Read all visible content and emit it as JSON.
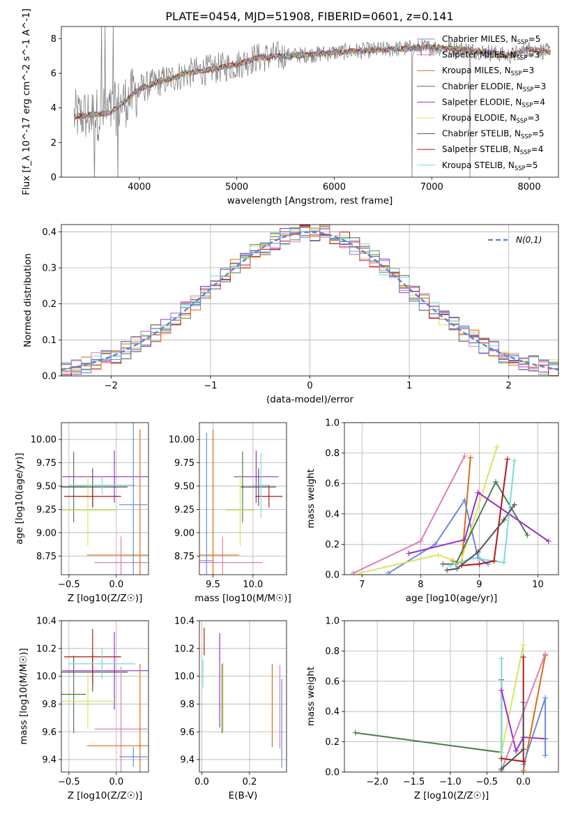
{
  "title": "PLATE=0454, MJD=51908, FIBERID=0601, z=0.141",
  "colors": [
    "#4d7a4d",
    "#9b30c8",
    "#d9e55c",
    "#555555",
    "#b01818",
    "#7fd8d8",
    "#e07cb8",
    "#d96b13",
    "#6a8bd8"
  ],
  "chart_data": [
    {
      "id": "spectrum",
      "type": "line",
      "xlabel": "wavelength [Angstrom, rest frame]",
      "ylabel": "Flux [f_λ 10^-17 erg cm^-2 s^-1 A^-1]",
      "xlim": [
        3200,
        8300
      ],
      "ylim": [
        0,
        8.7
      ],
      "xticks": [
        4000,
        5000,
        6000,
        7000,
        8000
      ],
      "yticks": [
        0,
        2,
        4,
        6,
        8
      ],
      "legend": [
        {
          "label": "Chabrier MILES, N_SSP=5",
          "color": "#6a8bd8"
        },
        {
          "label": "Salpeter MILES, N_SSP=3",
          "color": "#e07cb8"
        },
        {
          "label": "Kroupa MILES, N_SSP=3",
          "color": "#d96b13"
        },
        {
          "label": "Chabrier ELODIE, N_SSP=3",
          "color": "#4d7a4d"
        },
        {
          "label": "Salpeter ELODIE, N_SSP=4",
          "color": "#9b30c8"
        },
        {
          "label": "Kroupa ELODIE, N_SSP=3",
          "color": "#d9e55c"
        },
        {
          "label": "Chabrier STELIB, N_SSP=5",
          "color": "#555555"
        },
        {
          "label": "Salpeter STELIB, N_SSP=4",
          "color": "#b01818"
        },
        {
          "label": "Kroupa STELIB, N_SSP=5",
          "color": "#7fd8d8"
        }
      ],
      "data_color": "#808080",
      "continuum": [
        [
          3330,
          3.5
        ],
        [
          3500,
          3.6
        ],
        [
          3700,
          3.7
        ],
        [
          3900,
          4.6
        ],
        [
          4000,
          5.1
        ],
        [
          4200,
          5.5
        ],
        [
          4500,
          6.0
        ],
        [
          4800,
          6.3
        ],
        [
          5000,
          6.5
        ],
        [
          5200,
          6.9
        ],
        [
          5500,
          7.0
        ],
        [
          5800,
          7.1
        ],
        [
          6000,
          7.2
        ],
        [
          6300,
          7.3
        ],
        [
          6600,
          7.4
        ],
        [
          7000,
          7.5
        ],
        [
          7300,
          7.4
        ],
        [
          7600,
          7.2
        ],
        [
          7800,
          7.0
        ],
        [
          8000,
          7.4
        ],
        [
          8220,
          7.2
        ]
      ]
    },
    {
      "id": "residuals",
      "type": "line",
      "xlabel": "(data-model)/error",
      "ylabel": "Normed distribution",
      "xlim": [
        -2.5,
        2.5
      ],
      "ylim": [
        0,
        0.42
      ],
      "xticks": [
        -2,
        -1,
        0,
        1,
        2
      ],
      "yticks": [
        0,
        0.1,
        0.2,
        0.3,
        0.4
      ],
      "legend": "N(0,1)",
      "gauss_color": "#5b87d6"
    },
    {
      "id": "age_z",
      "type": "scatter",
      "xlabel": "Z [log10(Z/Z☉)]",
      "ylabel": "age [log10(age/yr)]",
      "xlim": [
        -0.58,
        0.34
      ],
      "ylim": [
        8.55,
        10.18
      ],
      "xticks": [
        -0.5,
        0.0
      ],
      "yticks": [
        8.75,
        9.0,
        9.25,
        9.5,
        9.75,
        10.0
      ],
      "points": [
        {
          "x": -0.45,
          "y": 9.49,
          "xerr": 0.13,
          "yerr": 0.38,
          "c": 0
        },
        {
          "x": -0.02,
          "y": 9.6,
          "xerr": 0.55,
          "yerr": 0.28,
          "c": 1
        },
        {
          "x": -0.3,
          "y": 9.24,
          "xerr": 0.3,
          "yerr": 0.38,
          "c": 2
        },
        {
          "x": -0.25,
          "y": 9.49,
          "xerr": 0.37,
          "yerr": 0.2,
          "c": 3
        },
        {
          "x": -0.25,
          "y": 9.39,
          "xerr": 0.3,
          "yerr": 0.12,
          "c": 4
        },
        {
          "x": -0.15,
          "y": 9.51,
          "xerr": 0.35,
          "yerr": 0.1,
          "c": 5
        },
        {
          "x": 0.05,
          "y": 8.68,
          "xerr": 0.28,
          "yerr": 0.28,
          "c": 6
        },
        {
          "x": 0.25,
          "y": 8.76,
          "xerr": 0.56,
          "yerr": 1.35,
          "c": 7
        },
        {
          "x": 0.18,
          "y": 9.3,
          "xerr": 0.15,
          "yerr": 1.5,
          "c": 8
        }
      ]
    },
    {
      "id": "age_mass",
      "type": "scatter",
      "xlabel": "mass [log10(M/M☉)]",
      "ylabel": "",
      "xlim": [
        9.33,
        10.42
      ],
      "ylim": [
        8.55,
        10.18
      ],
      "xticks": [
        9.5,
        10.0
      ],
      "yticks": [
        8.75,
        9.0,
        9.25,
        9.5,
        9.75,
        10.0
      ],
      "points": [
        {
          "x": 9.87,
          "y": 9.49,
          "xerr": 0.02,
          "yerr": 0.38,
          "c": 0
        },
        {
          "x": 10.04,
          "y": 9.6,
          "xerr": 0.28,
          "yerr": 0.28,
          "c": 1
        },
        {
          "x": 9.84,
          "y": 9.24,
          "xerr": 0.18,
          "yerr": 0.38,
          "c": 2
        },
        {
          "x": 10.07,
          "y": 9.49,
          "xerr": 0.22,
          "yerr": 0.2,
          "c": 3
        },
        {
          "x": 10.2,
          "y": 9.39,
          "xerr": 0.17,
          "yerr": 0.12,
          "c": 4
        },
        {
          "x": 10.1,
          "y": 9.51,
          "xerr": 0.1,
          "yerr": 0.35,
          "c": 5
        },
        {
          "x": 9.62,
          "y": 8.68,
          "xerr": 0.5,
          "yerr": 0.28,
          "c": 6
        },
        {
          "x": 9.5,
          "y": 8.76,
          "xerr": 0.33,
          "yerr": 1.35,
          "c": 7
        },
        {
          "x": 9.42,
          "y": 8.7,
          "xerr": 0.08,
          "yerr": 1.37,
          "c": 8
        }
      ]
    },
    {
      "id": "weight_age",
      "type": "line",
      "xlabel": "age [log10(age/yr)]",
      "ylabel": "mass weight",
      "xlim": [
        6.7,
        10.35
      ],
      "ylim": [
        0,
        1.0
      ],
      "xticks": [
        7,
        8,
        9,
        10
      ],
      "yticks": [
        0,
        0.2,
        0.4,
        0.6,
        0.8,
        1.0
      ],
      "series": [
        {
          "c": 6,
          "points": [
            [
              6.85,
              0.01
            ],
            [
              8.0,
              0.22
            ],
            [
              8.75,
              0.78
            ]
          ]
        },
        {
          "c": 7,
          "points": [
            [
              8.55,
              0.09
            ],
            [
              8.7,
              0.08
            ],
            [
              8.85,
              0.77
            ]
          ]
        },
        {
          "c": 8,
          "points": [
            [
              7.45,
              0.01
            ],
            [
              8.25,
              0.2
            ],
            [
              8.75,
              0.49
            ],
            [
              8.98,
              0.11
            ],
            [
              9.15,
              0.07
            ]
          ]
        },
        {
          "c": 2,
          "points": [
            [
              6.95,
              0.01
            ],
            [
              8.3,
              0.13
            ],
            [
              8.68,
              0.08
            ],
            [
              9.3,
              0.84
            ]
          ]
        },
        {
          "c": 0,
          "points": [
            [
              8.38,
              0.07
            ],
            [
              8.6,
              0.07
            ],
            [
              9.28,
              0.61
            ],
            [
              9.82,
              0.26
            ]
          ]
        },
        {
          "c": 1,
          "points": [
            [
              7.8,
              0.14
            ],
            [
              8.75,
              0.23
            ],
            [
              8.98,
              0.54
            ],
            [
              10.18,
              0.22
            ]
          ]
        },
        {
          "c": 5,
          "points": [
            [
              8.5,
              0.06
            ],
            [
              8.9,
              0.11
            ],
            [
              9.42,
              0.08
            ],
            [
              9.6,
              0.75
            ]
          ]
        },
        {
          "c": 4,
          "points": [
            [
              8.7,
              0.06
            ],
            [
              9.0,
              0.07
            ],
            [
              9.25,
              0.09
            ],
            [
              9.48,
              0.76
            ]
          ]
        },
        {
          "c": 3,
          "points": [
            [
              8.45,
              0.03
            ],
            [
              8.62,
              0.04
            ],
            [
              8.98,
              0.15
            ],
            [
              9.42,
              0.36
            ],
            [
              9.6,
              0.46
            ]
          ]
        }
      ]
    },
    {
      "id": "mass_z",
      "type": "scatter",
      "xlabel": "Z [log10(Z/Z☉)]",
      "ylabel": "mass [log10(M/M☉)]",
      "xlim": [
        -0.58,
        0.34
      ],
      "ylim": [
        9.31,
        10.4
      ],
      "xticks": [
        -0.5,
        0.0
      ],
      "yticks": [
        9.4,
        9.6,
        9.8,
        10.0,
        10.2,
        10.4
      ],
      "points": [
        {
          "x": -0.45,
          "y": 9.87,
          "xerr": 0.13,
          "yerr": 0.28,
          "c": 0
        },
        {
          "x": -0.02,
          "y": 10.04,
          "xerr": 0.55,
          "yerr": 0.28,
          "c": 1
        },
        {
          "x": -0.3,
          "y": 9.82,
          "xerr": 0.3,
          "yerr": 0.2,
          "c": 2
        },
        {
          "x": -0.25,
          "y": 10.03,
          "xerr": 0.37,
          "yerr": 0.14,
          "c": 3
        },
        {
          "x": -0.25,
          "y": 10.14,
          "xerr": 0.3,
          "yerr": 0.2,
          "c": 4
        },
        {
          "x": -0.15,
          "y": 10.09,
          "xerr": 0.35,
          "yerr": 0.11,
          "c": 5
        },
        {
          "x": 0.05,
          "y": 9.62,
          "xerr": 0.28,
          "yerr": 0.45,
          "c": 6
        },
        {
          "x": 0.25,
          "y": 9.5,
          "xerr": 0.56,
          "yerr": 0.59,
          "c": 7
        },
        {
          "x": 0.18,
          "y": 9.42,
          "xerr": 0.15,
          "yerr": 0.07,
          "c": 8
        }
      ]
    },
    {
      "id": "mass_ebv",
      "type": "scatter",
      "xlabel": "E(B-V)",
      "ylabel": "",
      "xlim": [
        -0.01,
        0.355
      ],
      "ylim": [
        9.31,
        10.4
      ],
      "xticks": [
        0.0,
        0.2
      ],
      "yticks": [
        9.4,
        9.6,
        9.8,
        10.0,
        10.2,
        10.4
      ],
      "points": [
        {
          "x": 0.01,
          "y": 10.25,
          "xerr": 0,
          "yerr": 0.1,
          "c": 4
        },
        {
          "x": 0.005,
          "y": 10.02,
          "xerr": 0,
          "yerr": 0.1,
          "c": 5
        },
        {
          "x": 0.075,
          "y": 9.97,
          "xerr": 0,
          "yerr": 0.34,
          "c": 1
        },
        {
          "x": 0.085,
          "y": 9.84,
          "xerr": 0,
          "yerr": 0.25,
          "c": 0
        },
        {
          "x": 0.09,
          "y": 9.85,
          "xerr": 0,
          "yerr": 0.25,
          "c": 2
        },
        {
          "x": 0.295,
          "y": 9.79,
          "xerr": 0,
          "yerr": 0.3,
          "c": 7
        },
        {
          "x": 0.327,
          "y": 9.78,
          "xerr": 0,
          "yerr": 0.3,
          "c": 6
        },
        {
          "x": 0.335,
          "y": 9.66,
          "xerr": 0,
          "yerr": 0.32,
          "c": 8
        }
      ]
    },
    {
      "id": "weight_z",
      "type": "line",
      "xlabel": "Z [log10(Z/Z☉)]",
      "ylabel": "mass weight",
      "xlim": [
        -2.45,
        0.48
      ],
      "ylim": [
        0,
        1.0
      ],
      "xticks": [
        -2.0,
        -1.5,
        -1.0,
        -0.5,
        0.0
      ],
      "yticks": [
        0,
        0.2,
        0.4,
        0.6,
        0.8,
        1.0
      ],
      "series": [
        {
          "c": 0,
          "points": [
            [
              -2.3,
              0.26
            ],
            [
              -0.3,
              0.13
            ],
            [
              -0.3,
              0.61
            ]
          ]
        },
        {
          "c": 2,
          "points": [
            [
              -0.3,
              0.01
            ],
            [
              -0.3,
              0.13
            ],
            [
              0.0,
              0.84
            ]
          ]
        },
        {
          "c": 5,
          "points": [
            [
              -0.3,
              0.01
            ],
            [
              -0.3,
              0.75
            ]
          ]
        },
        {
          "c": 1,
          "points": [
            [
              -0.3,
              0.54
            ],
            [
              -0.1,
              0.14
            ],
            [
              0.0,
              0.23
            ],
            [
              0.3,
              0.22
            ]
          ]
        },
        {
          "c": 7,
          "points": [
            [
              0.0,
              0.01
            ],
            [
              0.3,
              0.77
            ]
          ]
        },
        {
          "c": 6,
          "points": [
            [
              -0.3,
              0.01
            ],
            [
              0.3,
              0.78
            ]
          ]
        },
        {
          "c": 8,
          "points": [
            [
              0.0,
              0.05
            ],
            [
              0.3,
              0.49
            ],
            [
              0.3,
              0.11
            ]
          ]
        },
        {
          "c": 4,
          "points": [
            [
              -0.3,
              0.09
            ],
            [
              0.0,
              0.07
            ],
            [
              0.0,
              0.76
            ]
          ]
        },
        {
          "c": 3,
          "points": [
            [
              -0.3,
              0.02
            ],
            [
              0.0,
              0.15
            ],
            [
              0.0,
              0.46
            ]
          ]
        }
      ]
    }
  ]
}
